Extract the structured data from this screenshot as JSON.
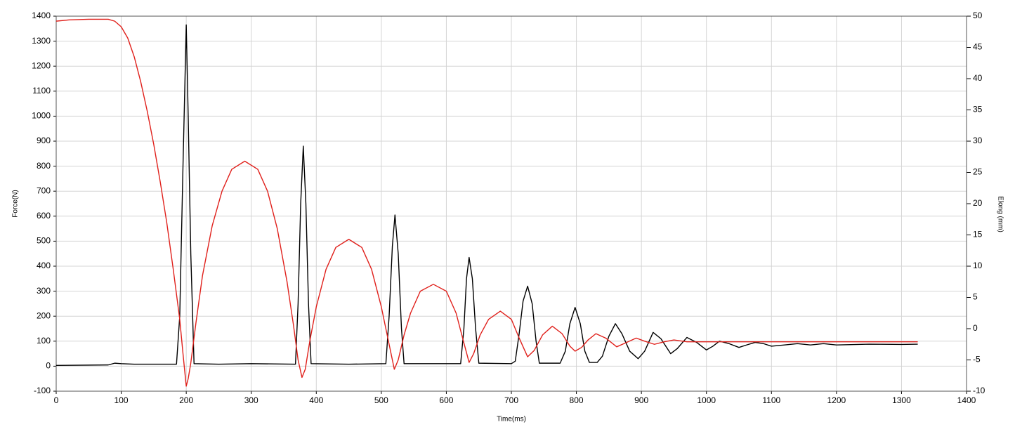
{
  "chart_data": {
    "type": "line",
    "xlabel": "Time(ms)",
    "ylabel": "Force(N)",
    "y2label": "Elong (mm)",
    "xlim": [
      0,
      1400
    ],
    "xticks": [
      0,
      100,
      200,
      300,
      400,
      500,
      600,
      700,
      800,
      900,
      1000,
      1100,
      1200,
      1300,
      1400
    ],
    "ylim": [
      -100,
      1400
    ],
    "yticks": [
      -100,
      0,
      100,
      200,
      300,
      400,
      500,
      600,
      700,
      800,
      900,
      1000,
      1100,
      1200,
      1300,
      1400
    ],
    "y2lim": [
      -10,
      50
    ],
    "y2ticks": [
      -10,
      -5,
      0,
      5,
      10,
      15,
      20,
      25,
      30,
      35,
      40,
      45,
      50
    ],
    "grid": true,
    "series": [
      {
        "color": "#000000",
        "axis": "y",
        "x": [
          0,
          80,
          90,
          100,
          120,
          185,
          190,
          195,
          200,
          203,
          207,
          212,
          250,
          300,
          368,
          372,
          376,
          380,
          384,
          388,
          392,
          450,
          507,
          512,
          517,
          521,
          526,
          531,
          535,
          600,
          622,
          627,
          631,
          635,
          640,
          645,
          650,
          700,
          706,
          712,
          718,
          725,
          732,
          738,
          743,
          775,
          783,
          790,
          798,
          806,
          813,
          820,
          832,
          840,
          850,
          860,
          870,
          882,
          895,
          905,
          918,
          930,
          945,
          955,
          970,
          985,
          1000,
          1010,
          1020,
          1035,
          1050,
          1062,
          1075,
          1088,
          1100,
          1120,
          1140,
          1160,
          1180,
          1200,
          1250,
          1300,
          1325
        ],
        "values": [
          3,
          5,
          12,
          10,
          8,
          8,
          200,
          800,
          1365,
          1000,
          450,
          10,
          8,
          10,
          8,
          250,
          650,
          880,
          650,
          250,
          10,
          8,
          10,
          200,
          480,
          605,
          450,
          150,
          10,
          10,
          10,
          150,
          350,
          435,
          350,
          150,
          12,
          10,
          20,
          130,
          260,
          320,
          250,
          100,
          12,
          12,
          60,
          170,
          235,
          170,
          60,
          15,
          15,
          40,
          120,
          170,
          130,
          60,
          30,
          60,
          135,
          110,
          50,
          70,
          115,
          95,
          65,
          80,
          100,
          90,
          75,
          85,
          95,
          90,
          80,
          85,
          90,
          85,
          90,
          85,
          88,
          87,
          88
        ]
      },
      {
        "color": "#e0201b",
        "axis": "y2",
        "x": [
          0,
          20,
          50,
          80,
          90,
          100,
          110,
          120,
          130,
          140,
          150,
          160,
          170,
          180,
          190,
          195,
          200,
          203,
          207,
          215,
          225,
          240,
          255,
          270,
          290,
          310,
          325,
          340,
          355,
          365,
          372,
          378,
          383,
          390,
          400,
          415,
          430,
          450,
          470,
          485,
          500,
          510,
          520,
          526,
          535,
          545,
          560,
          580,
          600,
          615,
          625,
          635,
          642,
          652,
          665,
          683,
          700,
          712,
          725,
          735,
          748,
          763,
          778,
          790,
          798,
          808,
          818,
          830,
          845,
          862,
          875,
          892,
          905,
          920,
          935,
          950,
          970,
          1000,
          1100,
          1200,
          1325
        ],
        "values": [
          49.2,
          49.4,
          49.5,
          49.5,
          49.2,
          48.3,
          46.5,
          43.5,
          39.5,
          34.8,
          29.5,
          23.5,
          17,
          9.5,
          1.5,
          -4,
          -9.2,
          -8,
          -5.5,
          1,
          8.5,
          16.5,
          22,
          25.5,
          26.8,
          25.5,
          22,
          16,
          7.5,
          0.5,
          -5,
          -7.8,
          -6.5,
          -2,
          3.5,
          9.5,
          13,
          14.3,
          13,
          9.5,
          3.5,
          -1.5,
          -6.5,
          -5,
          -1,
          2.5,
          6,
          7.1,
          6,
          2.5,
          -1.5,
          -5.4,
          -4,
          -1,
          1.5,
          2.8,
          1.5,
          -1.5,
          -4.5,
          -3.5,
          -1,
          0.4,
          -0.8,
          -2.8,
          -3.6,
          -3,
          -1.8,
          -0.8,
          -1.5,
          -2.9,
          -2.3,
          -1.5,
          -2,
          -2.5,
          -2.1,
          -1.8,
          -2.1,
          -2.1,
          -2.1,
          -2.1,
          -2.1
        ]
      }
    ]
  }
}
